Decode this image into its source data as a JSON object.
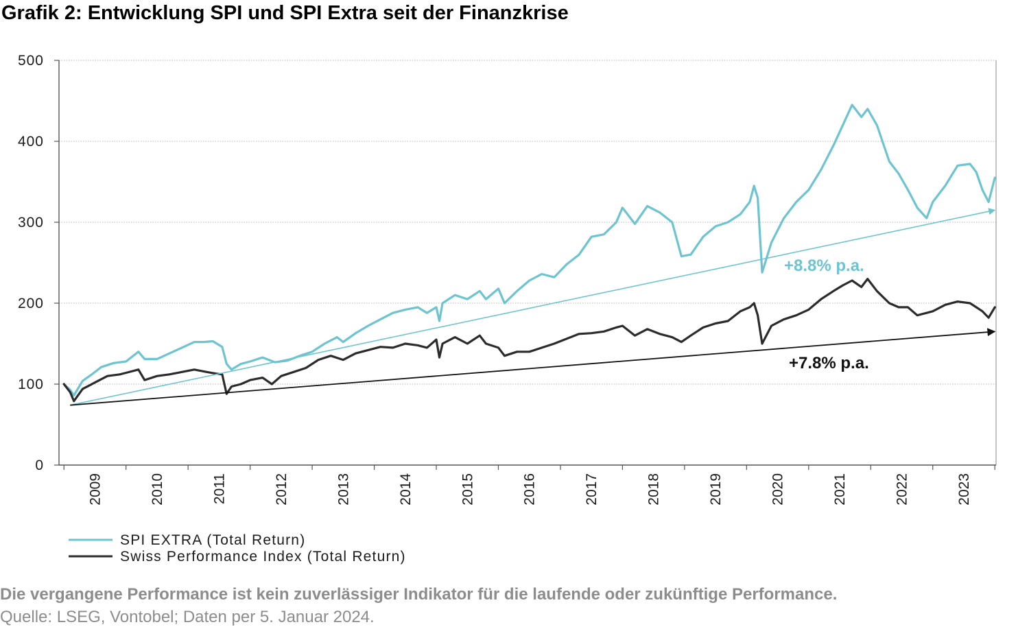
{
  "title": "Grafik 2: Entwicklung SPI und SPI Extra seit der Finanzkrise",
  "footer": {
    "disclaimer": "Die vergangene Performance ist kein zuverlässiger Indikator für die laufende oder zukünftige Performance.",
    "source": "Quelle: LSEG, Vontobel; Daten per 5. Januar 2024."
  },
  "chart_data": {
    "type": "line",
    "ylim": [
      0,
      500
    ],
    "yticks": [
      0,
      100,
      200,
      300,
      400,
      500
    ],
    "ytick_labels": [
      "0",
      "100",
      "200",
      "300",
      "400",
      "500"
    ],
    "xlim": [
      2008.92,
      2024.02
    ],
    "xtick_labels": [
      "2009",
      "2010",
      "2011",
      "2012",
      "2013",
      "2014",
      "2015",
      "2016",
      "2017",
      "2018",
      "2019",
      "2020",
      "2021",
      "2022",
      "2023"
    ],
    "grid": true,
    "legend": "bottom-left",
    "colors": {
      "spi_extra": "#6cc4d0",
      "spi": "#2b2b2b",
      "axis": "#555555",
      "grid": "#b5b5b5"
    },
    "series": [
      {
        "name": "SPI EXTRA (Total Return)",
        "key": "spi_extra",
        "x": [
          2009.0,
          2009.1,
          2009.16,
          2009.3,
          2009.45,
          2009.6,
          2009.8,
          2010.0,
          2010.2,
          2010.3,
          2010.5,
          2010.7,
          2010.9,
          2011.1,
          2011.25,
          2011.4,
          2011.55,
          2011.62,
          2011.7,
          2011.85,
          2012.0,
          2012.2,
          2012.4,
          2012.6,
          2012.8,
          2013.0,
          2013.2,
          2013.4,
          2013.5,
          2013.7,
          2013.9,
          2014.1,
          2014.3,
          2014.5,
          2014.7,
          2014.85,
          2015.0,
          2015.05,
          2015.1,
          2015.3,
          2015.5,
          2015.7,
          2015.8,
          2016.0,
          2016.1,
          2016.3,
          2016.5,
          2016.7,
          2016.9,
          2017.1,
          2017.3,
          2017.5,
          2017.7,
          2017.9,
          2018.0,
          2018.2,
          2018.4,
          2018.6,
          2018.8,
          2018.95,
          2019.1,
          2019.3,
          2019.5,
          2019.7,
          2019.9,
          2020.05,
          2020.12,
          2020.18,
          2020.25,
          2020.4,
          2020.6,
          2020.8,
          2021.0,
          2021.2,
          2021.4,
          2021.55,
          2021.7,
          2021.85,
          2021.95,
          2022.1,
          2022.3,
          2022.45,
          2022.6,
          2022.75,
          2022.9,
          2023.0,
          2023.2,
          2023.4,
          2023.6,
          2023.7,
          2023.8,
          2023.9,
          2024.0
        ],
        "values": [
          100,
          93,
          86,
          104,
          112,
          121,
          126,
          128,
          140,
          131,
          131,
          138,
          145,
          152,
          152,
          153,
          146,
          125,
          118,
          125,
          128,
          133,
          127,
          129,
          135,
          140,
          150,
          158,
          152,
          163,
          172,
          180,
          188,
          192,
          195,
          188,
          195,
          178,
          200,
          210,
          205,
          215,
          205,
          218,
          200,
          215,
          228,
          236,
          232,
          248,
          260,
          282,
          285,
          300,
          318,
          298,
          320,
          312,
          300,
          258,
          260,
          282,
          295,
          300,
          310,
          325,
          345,
          330,
          238,
          275,
          305,
          325,
          340,
          365,
          395,
          420,
          445,
          430,
          440,
          420,
          375,
          360,
          340,
          318,
          305,
          325,
          345,
          370,
          372,
          362,
          340,
          325,
          355
        ]
      },
      {
        "name": "Swiss Performance Index (Total Return)",
        "key": "spi",
        "x": [
          2009.0,
          2009.1,
          2009.16,
          2009.3,
          2009.5,
          2009.7,
          2009.9,
          2010.0,
          2010.2,
          2010.3,
          2010.5,
          2010.7,
          2010.9,
          2011.1,
          2011.3,
          2011.45,
          2011.55,
          2011.62,
          2011.7,
          2011.85,
          2012.0,
          2012.2,
          2012.35,
          2012.5,
          2012.7,
          2012.9,
          2013.1,
          2013.3,
          2013.5,
          2013.7,
          2013.9,
          2014.1,
          2014.3,
          2014.5,
          2014.7,
          2014.85,
          2015.0,
          2015.05,
          2015.1,
          2015.3,
          2015.5,
          2015.7,
          2015.8,
          2016.0,
          2016.1,
          2016.3,
          2016.5,
          2016.7,
          2016.9,
          2017.1,
          2017.3,
          2017.5,
          2017.7,
          2017.9,
          2018.0,
          2018.2,
          2018.4,
          2018.6,
          2018.8,
          2018.95,
          2019.1,
          2019.3,
          2019.5,
          2019.7,
          2019.9,
          2020.05,
          2020.12,
          2020.18,
          2020.25,
          2020.4,
          2020.6,
          2020.8,
          2021.0,
          2021.2,
          2021.4,
          2021.55,
          2021.7,
          2021.85,
          2021.95,
          2022.1,
          2022.3,
          2022.45,
          2022.6,
          2022.75,
          2022.9,
          2023.0,
          2023.2,
          2023.4,
          2023.6,
          2023.7,
          2023.8,
          2023.9,
          2024.0
        ],
        "values": [
          100,
          90,
          79,
          94,
          102,
          110,
          112,
          114,
          118,
          105,
          110,
          112,
          115,
          118,
          115,
          113,
          112,
          88,
          97,
          100,
          105,
          108,
          100,
          110,
          115,
          120,
          130,
          135,
          130,
          138,
          142,
          146,
          145,
          150,
          148,
          145,
          155,
          133,
          150,
          158,
          150,
          160,
          150,
          145,
          135,
          140,
          140,
          145,
          150,
          156,
          162,
          163,
          165,
          170,
          172,
          160,
          168,
          162,
          158,
          152,
          160,
          170,
          175,
          178,
          190,
          195,
          200,
          185,
          150,
          172,
          180,
          185,
          192,
          205,
          215,
          222,
          228,
          220,
          230,
          215,
          200,
          195,
          195,
          185,
          188,
          190,
          198,
          202,
          200,
          195,
          190,
          182,
          195
        ]
      }
    ],
    "trendlines": [
      {
        "key": "spi_extra",
        "label": "+8.8% p.a.",
        "from": [
          2009.1,
          74
        ],
        "to": [
          2024.0,
          315
        ]
      },
      {
        "key": "spi",
        "label": "+7.8% p.a.",
        "from": [
          2009.1,
          74
        ],
        "to": [
          2024.0,
          165
        ]
      }
    ]
  }
}
